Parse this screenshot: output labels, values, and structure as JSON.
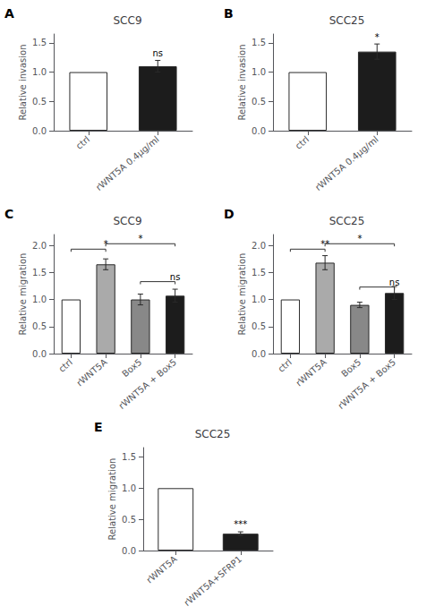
{
  "chart_data": [
    {
      "type": "bar",
      "title": "SCC9",
      "panel_label": "A",
      "categories": [
        "ctrl",
        "rWNT5A 0.4μg/ml"
      ],
      "values": [
        1.0,
        1.1
      ],
      "errors": [
        0.0,
        0.1
      ],
      "colors": [
        "white",
        "#1c1c1c"
      ],
      "ylabel": "Relative invasion",
      "ylim": [
        0,
        1.65
      ],
      "yticks": [
        {
          "value": 0.0,
          "label": "0.0"
        },
        0.5,
        {
          "value": 1.0,
          "label": "1.0"
        },
        1.5
      ],
      "grid": false,
      "annotations": [
        {
          "text": "ns",
          "x": "rWNT5A 0.4μg/ml",
          "y": 1.25
        }
      ]
    },
    {
      "type": "bar",
      "title": "SCC25",
      "panel_label": "B",
      "categories": [
        "ctrl",
        "rWNT5A 0.4μg/ml"
      ],
      "values": [
        1.0,
        1.35
      ],
      "errors": [
        0.0,
        0.13
      ],
      "colors": [
        "white",
        "#1c1c1c"
      ],
      "ylabel": "Relative invasion",
      "ylim": [
        0,
        1.65
      ],
      "yticks": [
        {
          "value": 0.0,
          "label": "0.0"
        },
        0.5,
        {
          "value": 1.0,
          "label": "1.0"
        },
        1.5
      ],
      "grid": false,
      "annotations": [
        {
          "text": "*",
          "x": "rWNT5A 0.4μg/ml",
          "y": 1.52
        }
      ]
    },
    {
      "type": "bar",
      "title": "SCC9",
      "panel_label": "C",
      "categories": [
        "ctrl",
        "rWNT5A",
        "Box5",
        "rWNT5A + Box5"
      ],
      "values": [
        1.0,
        1.65,
        1.0,
        1.07
      ],
      "errors": [
        0.0,
        0.1,
        0.1,
        0.12
      ],
      "colors": [
        "white",
        "#aaaaaa",
        "#888888",
        "#1c1c1c"
      ],
      "ylabel": "Relative migration",
      "ylim": [
        0,
        2.2
      ],
      "yticks": [
        {
          "value": 0.0,
          "label": "0.0"
        },
        0.5,
        {
          "value": 1.0,
          "label": "1.0"
        },
        1.5,
        {
          "value": 2.0,
          "label": "2.0"
        }
      ],
      "grid": false,
      "annotations": [
        {
          "text": "*",
          "x": [
            "ctrl",
            "rWNT5A"
          ],
          "y": 1.93
        },
        {
          "text": "*",
          "x": [
            "rWNT5A",
            "rWNT5A + Box5"
          ],
          "y": 2.03
        },
        {
          "text": "ns",
          "x": [
            "Box5",
            "rWNT5A + Box5"
          ],
          "y": 1.33
        }
      ]
    },
    {
      "type": "bar",
      "title": "SCC25",
      "panel_label": "D",
      "categories": [
        "ctrl",
        "rWNT5A",
        "Box5",
        "rWNT5A + Box5"
      ],
      "values": [
        1.0,
        1.68,
        0.9,
        1.12
      ],
      "errors": [
        0.0,
        0.13,
        0.05,
        0.12
      ],
      "colors": [
        "white",
        "#aaaaaa",
        "#888888",
        "#1c1c1c"
      ],
      "ylabel": "Relative migration",
      "ylim": [
        0,
        2.2
      ],
      "yticks": [
        {
          "value": 0.0,
          "label": "0.0"
        },
        0.5,
        {
          "value": 1.0,
          "label": "1.0"
        },
        1.5,
        {
          "value": 2.0,
          "label": "2.0"
        }
      ],
      "grid": false,
      "annotations": [
        {
          "text": "**",
          "x": [
            "ctrl",
            "rWNT5A"
          ],
          "y": 1.93
        },
        {
          "text": "*",
          "x": [
            "rWNT5A",
            "rWNT5A + Box5"
          ],
          "y": 2.03
        },
        {
          "text": "ns",
          "x": [
            "Box5",
            "rWNT5A + Box5"
          ],
          "y": 1.23
        }
      ]
    },
    {
      "type": "bar",
      "title": "SCC25",
      "panel_label": "E",
      "categories": [
        "rWNT5A",
        "rWNT5A+SFRP1"
      ],
      "values": [
        1.0,
        0.27
      ],
      "errors": [
        0.0,
        0.03
      ],
      "colors": [
        "white",
        "#1c1c1c"
      ],
      "ylabel": "Relative migration",
      "ylim": [
        0,
        1.65
      ],
      "yticks": [
        {
          "value": 0.0,
          "label": "0.0"
        },
        0.5,
        {
          "value": 1.0,
          "label": "1.0"
        },
        1.5
      ],
      "grid": false,
      "annotations": [
        {
          "text": "***",
          "x": "rWNT5A+SFRP1",
          "y": 0.35
        }
      ]
    }
  ]
}
